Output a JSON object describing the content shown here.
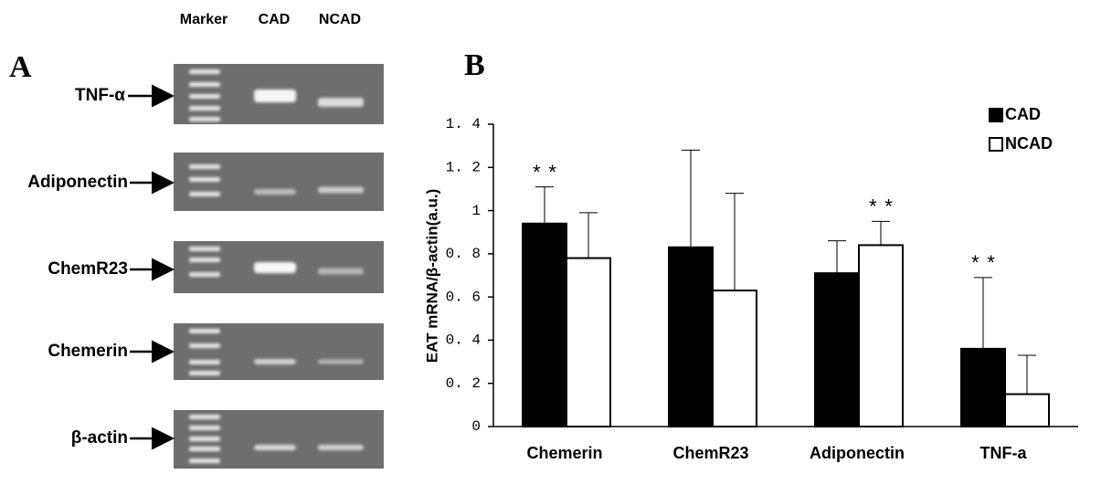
{
  "gel": {
    "panel_label": "A",
    "lanes": [
      "Marker",
      "CAD",
      "NCAD"
    ],
    "genes": [
      "TNF-α",
      "Adiponectin",
      "ChemR23",
      "Chemerin",
      "β-actin"
    ]
  },
  "chart_data": {
    "type": "bar",
    "panel_label": "B",
    "y_label": "EAT mRNA/β-actin(a.u.)",
    "categories": [
      "Chemerin",
      "ChemR23",
      "Adiponectin",
      "TNF-a"
    ],
    "series": [
      {
        "name": "CAD",
        "color": "#000000",
        "values": [
          0.94,
          0.83,
          0.71,
          0.36
        ],
        "errors": [
          0.17,
          0.45,
          0.15,
          0.33
        ],
        "annotations": [
          "**",
          null,
          null,
          "**"
        ]
      },
      {
        "name": "NCAD",
        "color": "#ffffff",
        "values": [
          0.78,
          0.63,
          0.84,
          0.15
        ],
        "errors": [
          0.21,
          0.45,
          0.11,
          0.18
        ],
        "annotations": [
          null,
          null,
          "**",
          null
        ]
      }
    ],
    "ylim": [
      0,
      1.4
    ],
    "yticks": [
      0,
      {
        "value": 0.2,
        "label": "0. 2"
      },
      {
        "value": 0.4,
        "label": "0. 4"
      },
      {
        "value": 0.6,
        "label": "0. 6"
      },
      {
        "value": 0.8,
        "label": "0. 8"
      },
      1,
      {
        "value": 1.2,
        "label": "1. 2"
      },
      {
        "value": 1.4,
        "label": "1. 4"
      }
    ],
    "legend": "top-right"
  }
}
